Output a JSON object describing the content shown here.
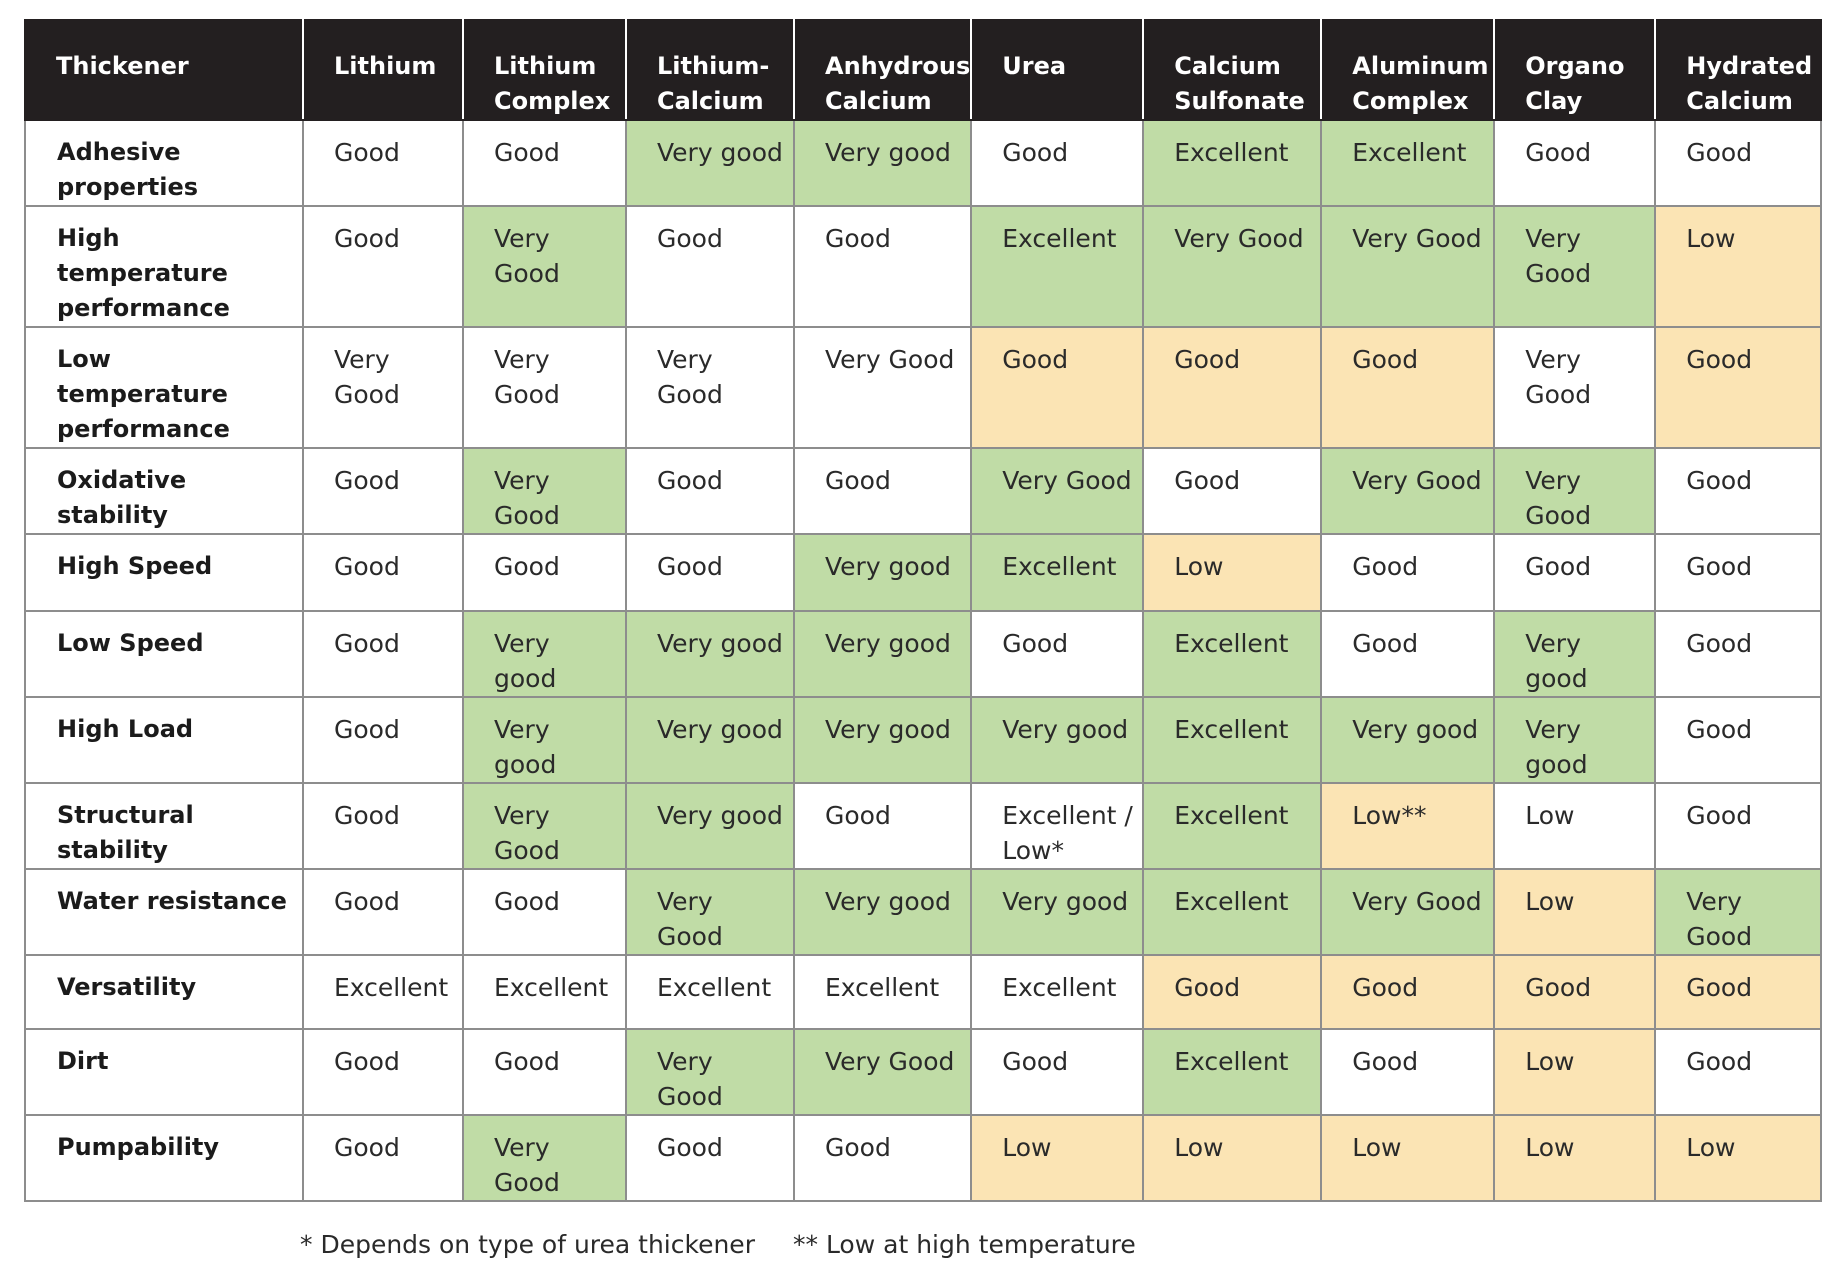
{
  "table": {
    "header": {
      "corner": "Thickener",
      "columns": [
        "Lithium",
        "Lithium Complex",
        "Lithium-Calcium",
        "Anhydrous Calcium",
        "Urea",
        "Calcium Sulfonate",
        "Aluminum Complex",
        "Organo Clay",
        "Hydrated Calcium"
      ]
    },
    "rows": [
      {
        "label": "Adhesive properties",
        "cells": [
          {
            "text": "Good",
            "tone": "w"
          },
          {
            "text": "Good",
            "tone": "w"
          },
          {
            "text": "Very good",
            "tone": "g"
          },
          {
            "text": "Very good",
            "tone": "g"
          },
          {
            "text": "Good",
            "tone": "w"
          },
          {
            "text": "Excellent",
            "tone": "g"
          },
          {
            "text": "Excellent",
            "tone": "g"
          },
          {
            "text": "Good",
            "tone": "w"
          },
          {
            "text": "Good",
            "tone": "w"
          }
        ]
      },
      {
        "label": "High temperature performance",
        "cells": [
          {
            "text": "Good",
            "tone": "w"
          },
          {
            "text": "Very Good",
            "tone": "g"
          },
          {
            "text": "Good",
            "tone": "w"
          },
          {
            "text": "Good",
            "tone": "w"
          },
          {
            "text": "Excellent",
            "tone": "g"
          },
          {
            "text": "Very Good",
            "tone": "g"
          },
          {
            "text": "Very Good",
            "tone": "g"
          },
          {
            "text": "Very Good",
            "tone": "g"
          },
          {
            "text": "Low",
            "tone": "y"
          }
        ]
      },
      {
        "label": "Low temperature performance",
        "cells": [
          {
            "text": "Very Good",
            "tone": "w"
          },
          {
            "text": "Very Good",
            "tone": "w"
          },
          {
            "text": "Very Good",
            "tone": "w"
          },
          {
            "text": "Very Good",
            "tone": "w"
          },
          {
            "text": "Good",
            "tone": "y"
          },
          {
            "text": "Good",
            "tone": "y"
          },
          {
            "text": "Good",
            "tone": "y"
          },
          {
            "text": "Very Good",
            "tone": "w"
          },
          {
            "text": "Good",
            "tone": "y"
          }
        ]
      },
      {
        "label": "Oxidative stability",
        "cells": [
          {
            "text": "Good",
            "tone": "w"
          },
          {
            "text": "Very Good",
            "tone": "g"
          },
          {
            "text": "Good",
            "tone": "w"
          },
          {
            "text": "Good",
            "tone": "w"
          },
          {
            "text": "Very Good",
            "tone": "g"
          },
          {
            "text": "Good",
            "tone": "w"
          },
          {
            "text": "Very Good",
            "tone": "g"
          },
          {
            "text": "Very Good",
            "tone": "g"
          },
          {
            "text": "Good",
            "tone": "w"
          }
        ]
      },
      {
        "label": "High Speed",
        "cells": [
          {
            "text": "Good",
            "tone": "w"
          },
          {
            "text": "Good",
            "tone": "w"
          },
          {
            "text": "Good",
            "tone": "w"
          },
          {
            "text": "Very good",
            "tone": "g"
          },
          {
            "text": "Excellent",
            "tone": "g"
          },
          {
            "text": "Low",
            "tone": "y"
          },
          {
            "text": "Good",
            "tone": "w"
          },
          {
            "text": "Good",
            "tone": "w"
          },
          {
            "text": "Good",
            "tone": "w"
          }
        ]
      },
      {
        "label": "Low Speed",
        "cells": [
          {
            "text": "Good",
            "tone": "w"
          },
          {
            "text": "Very good",
            "tone": "g"
          },
          {
            "text": "Very good",
            "tone": "g"
          },
          {
            "text": "Very good",
            "tone": "g"
          },
          {
            "text": "Good",
            "tone": "w"
          },
          {
            "text": "Excellent",
            "tone": "g"
          },
          {
            "text": "Good",
            "tone": "w"
          },
          {
            "text": "Very good",
            "tone": "g"
          },
          {
            "text": "Good",
            "tone": "w"
          }
        ]
      },
      {
        "label": "High Load",
        "cells": [
          {
            "text": "Good",
            "tone": "w"
          },
          {
            "text": "Very good",
            "tone": "g"
          },
          {
            "text": "Very good",
            "tone": "g"
          },
          {
            "text": "Very good",
            "tone": "g"
          },
          {
            "text": "Very good",
            "tone": "g"
          },
          {
            "text": "Excellent",
            "tone": "g"
          },
          {
            "text": "Very good",
            "tone": "g"
          },
          {
            "text": "Very good",
            "tone": "g"
          },
          {
            "text": "Good",
            "tone": "w"
          }
        ]
      },
      {
        "label": "Structural stability",
        "cells": [
          {
            "text": "Good",
            "tone": "w"
          },
          {
            "text": "Very Good",
            "tone": "g"
          },
          {
            "text": "Very good",
            "tone": "g"
          },
          {
            "text": "Good",
            "tone": "w"
          },
          {
            "text": "Excellent / Low*",
            "tone": "w"
          },
          {
            "text": "Excellent",
            "tone": "g"
          },
          {
            "text": "Low**",
            "tone": "y"
          },
          {
            "text": "Low",
            "tone": "w"
          },
          {
            "text": "Good",
            "tone": "w"
          }
        ]
      },
      {
        "label": "Water resistance",
        "cells": [
          {
            "text": "Good",
            "tone": "w"
          },
          {
            "text": "Good",
            "tone": "w"
          },
          {
            "text": "Very Good",
            "tone": "g"
          },
          {
            "text": "Very good",
            "tone": "g"
          },
          {
            "text": "Very good",
            "tone": "g"
          },
          {
            "text": "Excellent",
            "tone": "g"
          },
          {
            "text": "Very Good",
            "tone": "g"
          },
          {
            "text": "Low",
            "tone": "y"
          },
          {
            "text": "Very Good",
            "tone": "g"
          }
        ]
      },
      {
        "label": "Versatility",
        "cells": [
          {
            "text": "Excellent",
            "tone": "w"
          },
          {
            "text": "Excellent",
            "tone": "w"
          },
          {
            "text": "Excellent",
            "tone": "w"
          },
          {
            "text": "Excellent",
            "tone": "w"
          },
          {
            "text": "Excellent",
            "tone": "w"
          },
          {
            "text": "Good",
            "tone": "y"
          },
          {
            "text": "Good",
            "tone": "y"
          },
          {
            "text": "Good",
            "tone": "y"
          },
          {
            "text": "Good",
            "tone": "y"
          }
        ]
      },
      {
        "label": "Dirt",
        "cells": [
          {
            "text": "Good",
            "tone": "w"
          },
          {
            "text": "Good",
            "tone": "w"
          },
          {
            "text": "Very Good",
            "tone": "g"
          },
          {
            "text": "Very Good",
            "tone": "g"
          },
          {
            "text": "Good",
            "tone": "w"
          },
          {
            "text": "Excellent",
            "tone": "g"
          },
          {
            "text": "Good",
            "tone": "w"
          },
          {
            "text": "Low",
            "tone": "y"
          },
          {
            "text": "Good",
            "tone": "w"
          }
        ]
      },
      {
        "label": "Pumpability",
        "cells": [
          {
            "text": "Good",
            "tone": "w"
          },
          {
            "text": "Very Good",
            "tone": "g"
          },
          {
            "text": "Good",
            "tone": "w"
          },
          {
            "text": "Good",
            "tone": "w"
          },
          {
            "text": "Low",
            "tone": "y"
          },
          {
            "text": "Low",
            "tone": "y"
          },
          {
            "text": "Low",
            "tone": "y"
          },
          {
            "text": "Low",
            "tone": "y"
          },
          {
            "text": "Low",
            "tone": "y"
          }
        ]
      }
    ]
  },
  "colors": {
    "header_bg": "#231f20",
    "green": "#c0dca6",
    "yellow": "#fbe4b4",
    "grid": "#8d8d8d"
  },
  "footnotes": {
    "note1": "*  Depends on type of urea thickener",
    "note2": "**   Low at high temperature"
  }
}
